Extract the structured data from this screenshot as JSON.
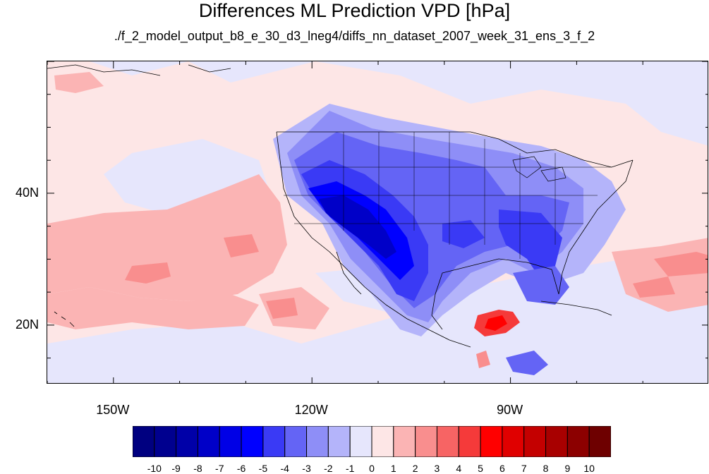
{
  "title": "Differences ML Prediction VPD [hPa]",
  "subtitle": "./f_2_model_output_b8_e_30_d3_lneg4/diffs_nn_dataset_2007_week_31_ens_3_f_2",
  "axes": {
    "lat_labels": [
      {
        "text": "40N",
        "value": 40
      },
      {
        "text": "20N",
        "value": 20
      }
    ],
    "lon_labels": [
      {
        "text": "150W",
        "value": -150
      },
      {
        "text": "120W",
        "value": -120
      },
      {
        "text": "90W",
        "value": -90
      }
    ],
    "lon_range": [
      -160,
      -60
    ],
    "lat_range": [
      11,
      60
    ]
  },
  "colorbar": {
    "labels": [
      "-10",
      "-9",
      "-8",
      "-7",
      "-6",
      "-5",
      "-4",
      "-3",
      "-2",
      "-1",
      "0",
      "1",
      "2",
      "3",
      "4",
      "5",
      "6",
      "7",
      "8",
      "9",
      "10"
    ],
    "colors": [
      "#000080",
      "#00008f",
      "#0000a8",
      "#0000c8",
      "#0000e6",
      "#0000ff",
      "#3a3af5",
      "#6464f5",
      "#8e8ef7",
      "#b4b4fa",
      "#e6e6fc",
      "#fde6e6",
      "#fbb4b4",
      "#f98e8e",
      "#f76464",
      "#f53a3a",
      "#ff0000",
      "#e00000",
      "#c40000",
      "#a80000",
      "#8c0000",
      "#6e0000"
    ]
  },
  "palette": {
    "ocean_base": "#fde6e6",
    "light_blue": "#e6e6fc",
    "pale_red": "#fbb4b4",
    "mid_red": "#f98e8e",
    "blue_2": "#b4b4fa",
    "blue_3": "#8e8ef7",
    "blue_4": "#6464f5",
    "blue_5": "#3a3af5",
    "blue_6": "#0000ff",
    "blue_8": "#0000c8",
    "red_5": "#f53a3a",
    "red_6": "#ff0000"
  }
}
